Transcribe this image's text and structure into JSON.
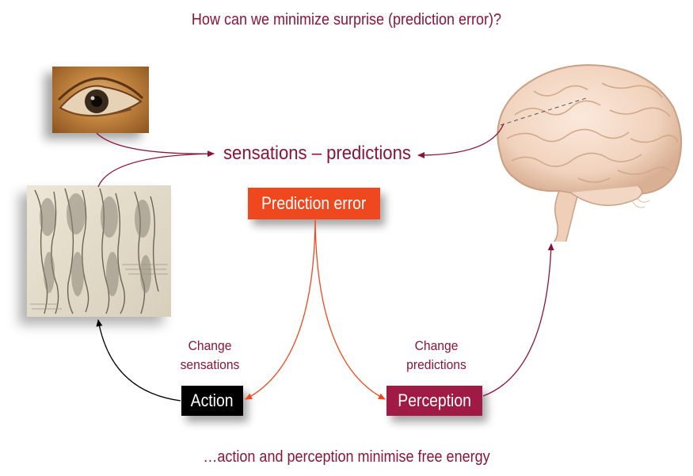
{
  "title": "How can we minimize surprise (prediction error)?",
  "center_label": "sensations – predictions",
  "prediction_error_box": "Prediction error",
  "action_box": "Action",
  "perception_box": "Perception",
  "action_label": [
    "Change",
    "sensations"
  ],
  "perception_label": [
    "Change",
    "predictions"
  ],
  "footer": "…action and perception minimise free energy",
  "images": {
    "eye": "eye-painting",
    "sketch": "anatomical-arm-sketch",
    "brain": "brain-illustration"
  },
  "colors": {
    "maroon": "#8a1538",
    "orange": "#f0481e",
    "black": "#000000",
    "perception": "#a01a46"
  }
}
